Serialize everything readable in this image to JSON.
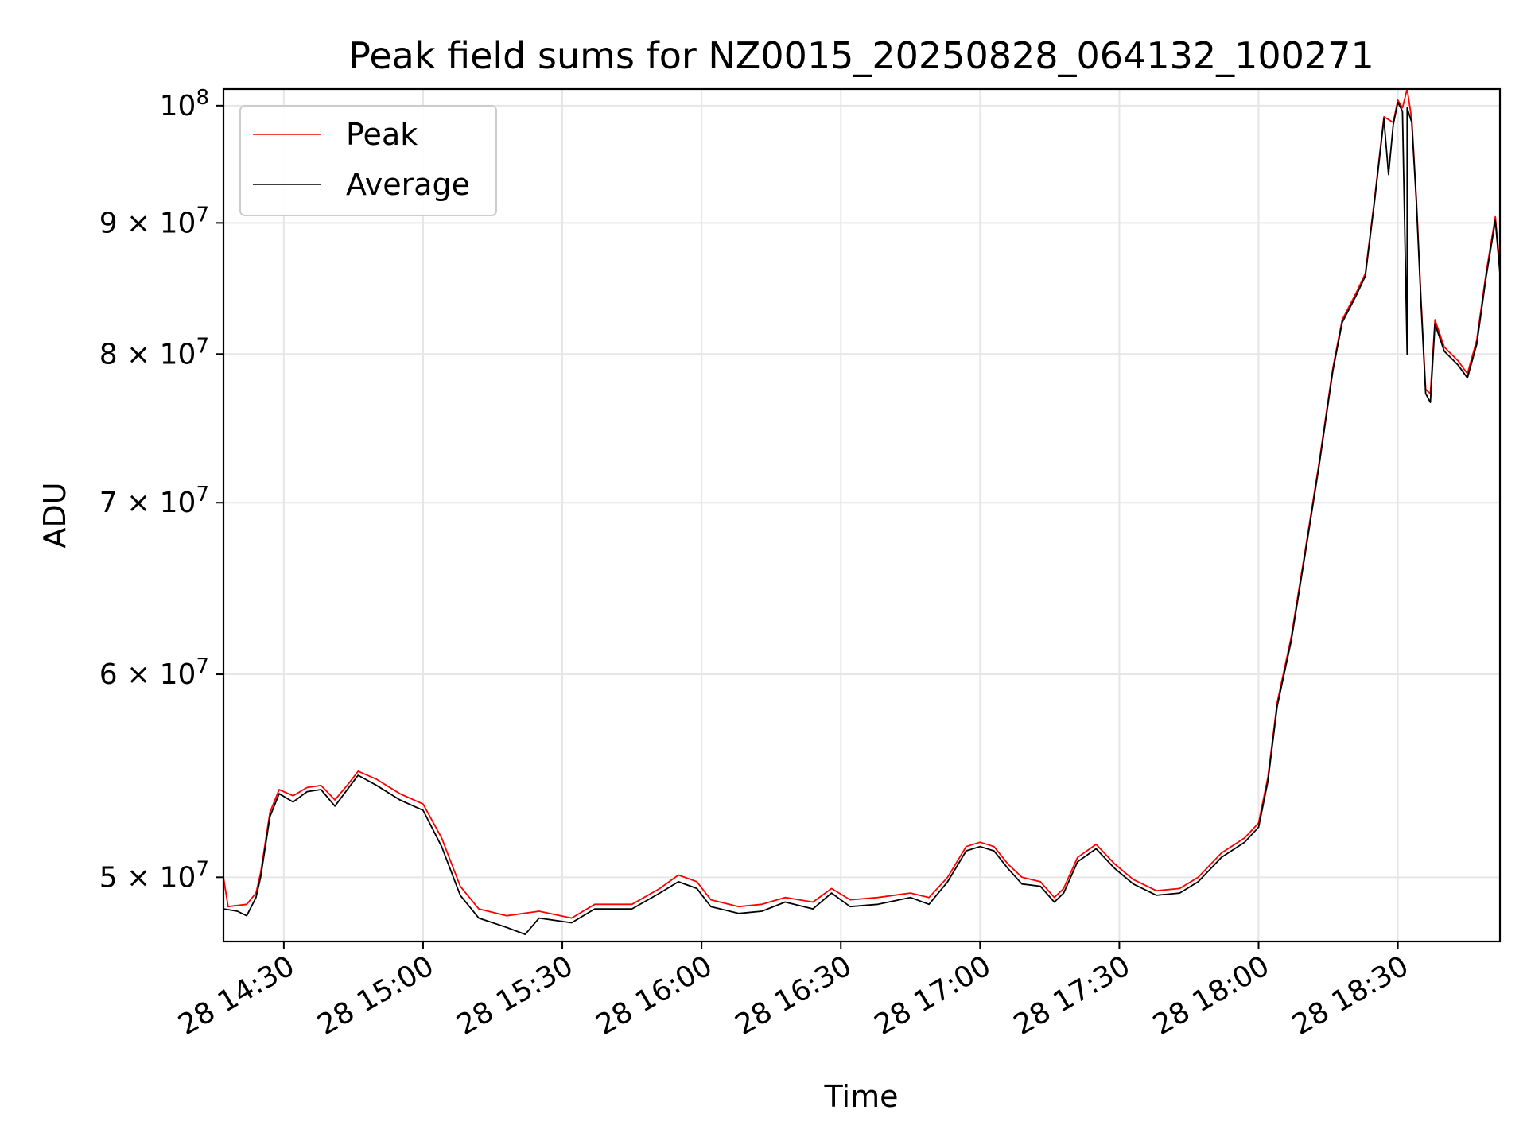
{
  "chart_data": {
    "type": "line",
    "title": "Peak field sums for NZ0015_20250828_064132_100271",
    "xlabel": "Time",
    "ylabel": "ADU",
    "yscale": "log",
    "ylim": [
      47200000,
      101500000
    ],
    "xlim": [
      "2025-08-28 14:17",
      "2025-08-28 18:52"
    ],
    "grid": true,
    "legend_position": "upper left",
    "x_ticks": [
      {
        "time": "2025-08-28 14:30",
        "label": "28 14:30"
      },
      {
        "time": "2025-08-28 15:00",
        "label": "28 15:00"
      },
      {
        "time": "2025-08-28 15:30",
        "label": "28 15:30"
      },
      {
        "time": "2025-08-28 16:00",
        "label": "28 16:00"
      },
      {
        "time": "2025-08-28 16:30",
        "label": "28 16:30"
      },
      {
        "time": "2025-08-28 17:00",
        "label": "28 17:00"
      },
      {
        "time": "2025-08-28 17:30",
        "label": "28 17:30"
      },
      {
        "time": "2025-08-28 18:00",
        "label": "28 18:00"
      },
      {
        "time": "2025-08-28 18:30",
        "label": "28 18:30"
      }
    ],
    "y_ticks": [
      {
        "value": 50000000,
        "base": "5 × 10",
        "exp": "7"
      },
      {
        "value": 60000000,
        "base": "6 × 10",
        "exp": "7"
      },
      {
        "value": 70000000,
        "base": "7 × 10",
        "exp": "7"
      },
      {
        "value": 80000000,
        "base": "8 × 10",
        "exp": "7"
      },
      {
        "value": 90000000,
        "base": "9 × 10",
        "exp": "7"
      },
      {
        "value": 100000000,
        "base": "10",
        "exp": "8"
      }
    ],
    "series": [
      {
        "name": "Peak",
        "color": "#ff0000",
        "points": [
          [
            "2025-08-28 14:17",
            50000000
          ],
          [
            "2025-08-28 14:18",
            48700000
          ],
          [
            "2025-08-28 14:22",
            48800000
          ],
          [
            "2025-08-28 14:24",
            49300000
          ],
          [
            "2025-08-28 14:25",
            50200000
          ],
          [
            "2025-08-28 14:27",
            53000000
          ],
          [
            "2025-08-28 14:29",
            54100000
          ],
          [
            "2025-08-28 14:32",
            53800000
          ],
          [
            "2025-08-28 14:35",
            54200000
          ],
          [
            "2025-08-28 14:38",
            54300000
          ],
          [
            "2025-08-28 14:41",
            53600000
          ],
          [
            "2025-08-28 14:44",
            54400000
          ],
          [
            "2025-08-28 14:46",
            55000000
          ],
          [
            "2025-08-28 14:50",
            54600000
          ],
          [
            "2025-08-28 14:55",
            53900000
          ],
          [
            "2025-08-28 15:00",
            53400000
          ],
          [
            "2025-08-28 15:04",
            51800000
          ],
          [
            "2025-08-28 15:08",
            49600000
          ],
          [
            "2025-08-28 15:12",
            48600000
          ],
          [
            "2025-08-28 15:18",
            48300000
          ],
          [
            "2025-08-28 15:25",
            48500000
          ],
          [
            "2025-08-28 15:32",
            48200000
          ],
          [
            "2025-08-28 15:37",
            48800000
          ],
          [
            "2025-08-28 15:45",
            48800000
          ],
          [
            "2025-08-28 15:51",
            49500000
          ],
          [
            "2025-08-28 15:55",
            50100000
          ],
          [
            "2025-08-28 15:59",
            49800000
          ],
          [
            "2025-08-28 16:02",
            49000000
          ],
          [
            "2025-08-28 16:08",
            48700000
          ],
          [
            "2025-08-28 16:13",
            48800000
          ],
          [
            "2025-08-28 16:18",
            49100000
          ],
          [
            "2025-08-28 16:24",
            48900000
          ],
          [
            "2025-08-28 16:28",
            49500000
          ],
          [
            "2025-08-28 16:32",
            49000000
          ],
          [
            "2025-08-28 16:38",
            49100000
          ],
          [
            "2025-08-28 16:45",
            49300000
          ],
          [
            "2025-08-28 16:49",
            49100000
          ],
          [
            "2025-08-28 16:53",
            50000000
          ],
          [
            "2025-08-28 16:57",
            51400000
          ],
          [
            "2025-08-28 17:00",
            51600000
          ],
          [
            "2025-08-28 17:03",
            51400000
          ],
          [
            "2025-08-28 17:06",
            50600000
          ],
          [
            "2025-08-28 17:09",
            50000000
          ],
          [
            "2025-08-28 17:13",
            49800000
          ],
          [
            "2025-08-28 17:16",
            49100000
          ],
          [
            "2025-08-28 17:18",
            49500000
          ],
          [
            "2025-08-28 17:21",
            50900000
          ],
          [
            "2025-08-28 17:25",
            51500000
          ],
          [
            "2025-08-28 17:29",
            50600000
          ],
          [
            "2025-08-28 17:33",
            49900000
          ],
          [
            "2025-08-28 17:38",
            49400000
          ],
          [
            "2025-08-28 17:43",
            49500000
          ],
          [
            "2025-08-28 17:47",
            50000000
          ],
          [
            "2025-08-28 17:52",
            51100000
          ],
          [
            "2025-08-28 17:57",
            51800000
          ],
          [
            "2025-08-28 18:00",
            52500000
          ],
          [
            "2025-08-28 18:02",
            54700000
          ],
          [
            "2025-08-28 18:04",
            58500000
          ],
          [
            "2025-08-28 18:07",
            62000000
          ],
          [
            "2025-08-28 18:10",
            67000000
          ],
          [
            "2025-08-28 18:13",
            72500000
          ],
          [
            "2025-08-28 18:16",
            79000000
          ],
          [
            "2025-08-28 18:18",
            82500000
          ],
          [
            "2025-08-28 18:21",
            84500000
          ],
          [
            "2025-08-28 18:23",
            86000000
          ],
          [
            "2025-08-28 18:25",
            92000000
          ],
          [
            "2025-08-28 18:27",
            99000000
          ],
          [
            "2025-08-28 18:29",
            98500000
          ],
          [
            "2025-08-28 18:30",
            100500000
          ],
          [
            "2025-08-28 18:31",
            99800000
          ],
          [
            "2025-08-28 18:32",
            101500000
          ],
          [
            "2025-08-28 18:33",
            98800000
          ],
          [
            "2025-08-28 18:34",
            92000000
          ],
          [
            "2025-08-28 18:35",
            84000000
          ],
          [
            "2025-08-28 18:36",
            77500000
          ],
          [
            "2025-08-28 18:37",
            77200000
          ],
          [
            "2025-08-28 18:38",
            82500000
          ],
          [
            "2025-08-28 18:40",
            80500000
          ],
          [
            "2025-08-28 18:43",
            79500000
          ],
          [
            "2025-08-28 18:45",
            78600000
          ],
          [
            "2025-08-28 18:47",
            81000000
          ],
          [
            "2025-08-28 18:49",
            86000000
          ],
          [
            "2025-08-28 18:51",
            90500000
          ],
          [
            "2025-08-28 18:52",
            86500000
          ]
        ]
      },
      {
        "name": "Average",
        "color": "#000000",
        "points": [
          [
            "2025-08-28 14:17",
            48600000
          ],
          [
            "2025-08-28 14:20",
            48500000
          ],
          [
            "2025-08-28 14:22",
            48300000
          ],
          [
            "2025-08-28 14:24",
            49100000
          ],
          [
            "2025-08-28 14:25",
            50000000
          ],
          [
            "2025-08-28 14:27",
            52800000
          ],
          [
            "2025-08-28 14:29",
            53900000
          ],
          [
            "2025-08-28 14:32",
            53500000
          ],
          [
            "2025-08-28 14:35",
            54000000
          ],
          [
            "2025-08-28 14:38",
            54100000
          ],
          [
            "2025-08-28 14:41",
            53300000
          ],
          [
            "2025-08-28 14:44",
            54200000
          ],
          [
            "2025-08-28 14:46",
            54800000
          ],
          [
            "2025-08-28 14:50",
            54300000
          ],
          [
            "2025-08-28 14:55",
            53600000
          ],
          [
            "2025-08-28 15:00",
            53100000
          ],
          [
            "2025-08-28 15:04",
            51400000
          ],
          [
            "2025-08-28 15:08",
            49200000
          ],
          [
            "2025-08-28 15:12",
            48200000
          ],
          [
            "2025-08-28 15:18",
            47800000
          ],
          [
            "2025-08-28 15:22",
            47500000
          ],
          [
            "2025-08-28 15:25",
            48200000
          ],
          [
            "2025-08-28 15:32",
            48000000
          ],
          [
            "2025-08-28 15:37",
            48600000
          ],
          [
            "2025-08-28 15:45",
            48600000
          ],
          [
            "2025-08-28 15:51",
            49300000
          ],
          [
            "2025-08-28 15:55",
            49800000
          ],
          [
            "2025-08-28 15:59",
            49500000
          ],
          [
            "2025-08-28 16:02",
            48700000
          ],
          [
            "2025-08-28 16:08",
            48400000
          ],
          [
            "2025-08-28 16:13",
            48500000
          ],
          [
            "2025-08-28 16:18",
            48900000
          ],
          [
            "2025-08-28 16:24",
            48600000
          ],
          [
            "2025-08-28 16:28",
            49300000
          ],
          [
            "2025-08-28 16:32",
            48700000
          ],
          [
            "2025-08-28 16:38",
            48800000
          ],
          [
            "2025-08-28 16:45",
            49100000
          ],
          [
            "2025-08-28 16:49",
            48800000
          ],
          [
            "2025-08-28 16:53",
            49800000
          ],
          [
            "2025-08-28 16:57",
            51200000
          ],
          [
            "2025-08-28 17:00",
            51400000
          ],
          [
            "2025-08-28 17:03",
            51200000
          ],
          [
            "2025-08-28 17:06",
            50400000
          ],
          [
            "2025-08-28 17:09",
            49700000
          ],
          [
            "2025-08-28 17:13",
            49600000
          ],
          [
            "2025-08-28 17:16",
            48900000
          ],
          [
            "2025-08-28 17:18",
            49300000
          ],
          [
            "2025-08-28 17:21",
            50700000
          ],
          [
            "2025-08-28 17:25",
            51300000
          ],
          [
            "2025-08-28 17:29",
            50400000
          ],
          [
            "2025-08-28 17:33",
            49700000
          ],
          [
            "2025-08-28 17:38",
            49200000
          ],
          [
            "2025-08-28 17:43",
            49300000
          ],
          [
            "2025-08-28 17:47",
            49800000
          ],
          [
            "2025-08-28 17:52",
            50900000
          ],
          [
            "2025-08-28 17:57",
            51600000
          ],
          [
            "2025-08-28 18:00",
            52300000
          ],
          [
            "2025-08-28 18:02",
            54500000
          ],
          [
            "2025-08-28 18:04",
            58300000
          ],
          [
            "2025-08-28 18:07",
            61800000
          ],
          [
            "2025-08-28 18:10",
            66800000
          ],
          [
            "2025-08-28 18:13",
            72300000
          ],
          [
            "2025-08-28 18:16",
            78800000
          ],
          [
            "2025-08-28 18:18",
            82300000
          ],
          [
            "2025-08-28 18:21",
            84300000
          ],
          [
            "2025-08-28 18:23",
            85800000
          ],
          [
            "2025-08-28 18:25",
            91800000
          ],
          [
            "2025-08-28 18:27",
            98800000
          ],
          [
            "2025-08-28 18:28",
            94000000
          ],
          [
            "2025-08-28 18:29",
            98300000
          ],
          [
            "2025-08-28 18:30",
            100300000
          ],
          [
            "2025-08-28 18:31",
            99500000
          ],
          [
            "2025-08-28 18:32",
            80000000
          ],
          [
            "2025-08-28 18:32",
            99800000
          ],
          [
            "2025-08-28 18:33",
            98500000
          ],
          [
            "2025-08-28 18:34",
            91700000
          ],
          [
            "2025-08-28 18:35",
            83700000
          ],
          [
            "2025-08-28 18:36",
            77200000
          ],
          [
            "2025-08-28 18:37",
            76600000
          ],
          [
            "2025-08-28 18:38",
            82200000
          ],
          [
            "2025-08-28 18:40",
            80200000
          ],
          [
            "2025-08-28 18:43",
            79200000
          ],
          [
            "2025-08-28 18:45",
            78300000
          ],
          [
            "2025-08-28 18:47",
            80700000
          ],
          [
            "2025-08-28 18:49",
            85700000
          ],
          [
            "2025-08-28 18:51",
            90200000
          ],
          [
            "2025-08-28 18:52",
            86000000
          ]
        ]
      }
    ]
  }
}
